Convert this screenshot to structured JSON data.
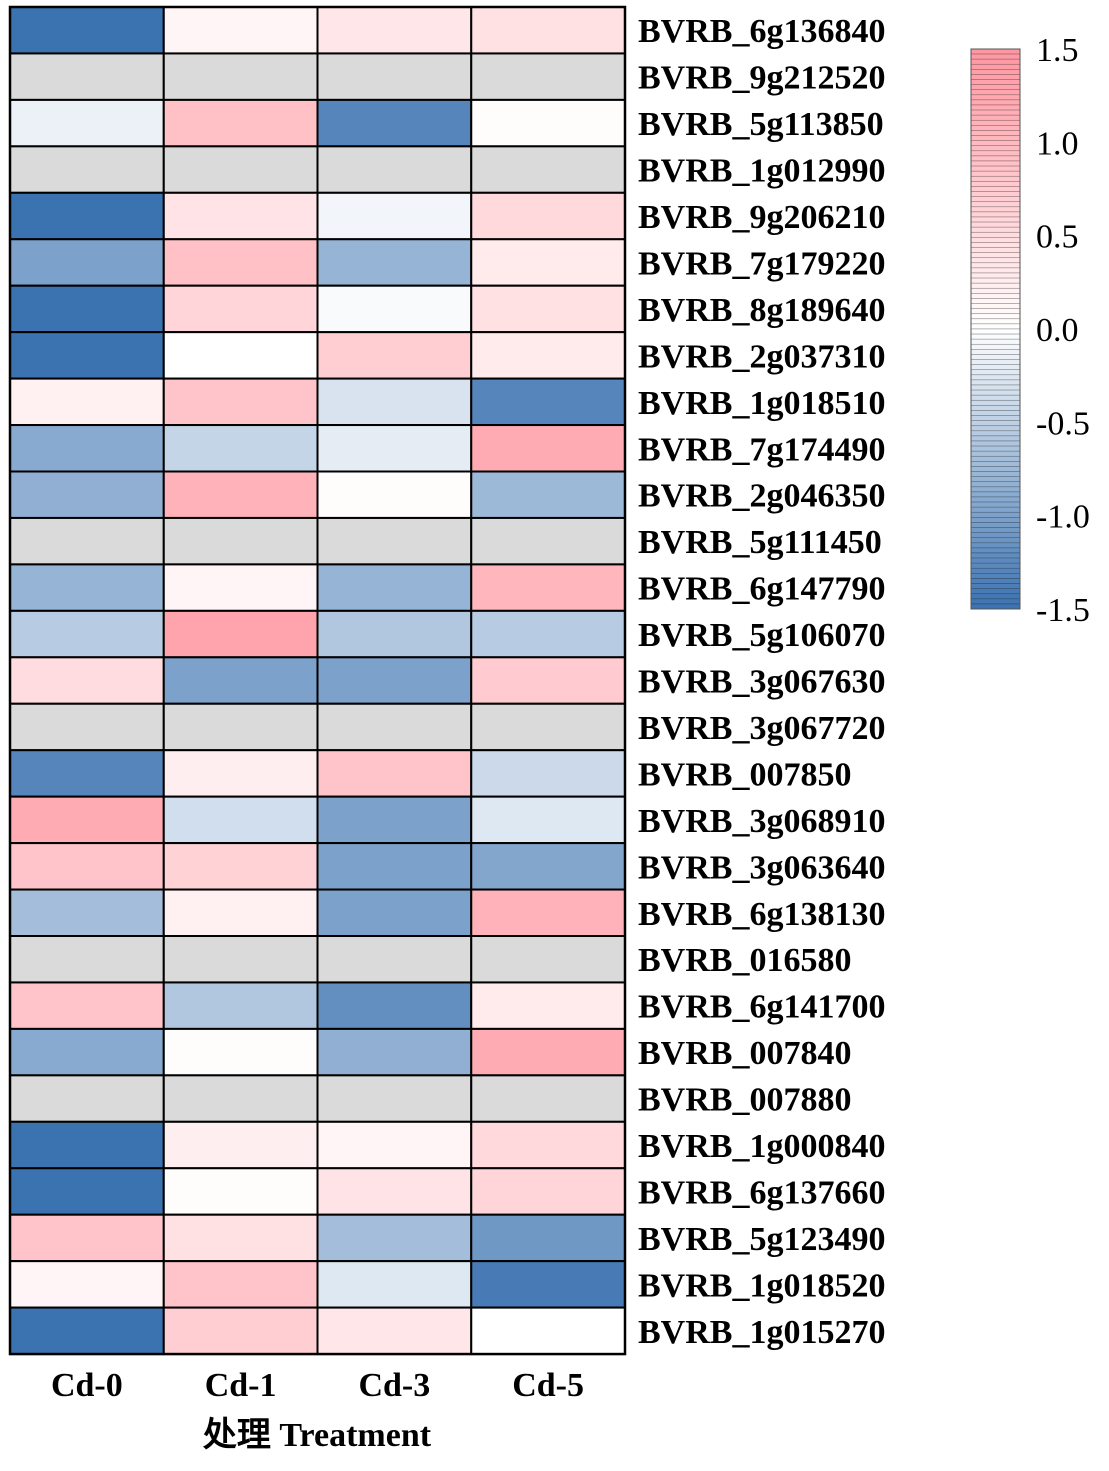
{
  "chart_data": {
    "type": "heatmap",
    "x_axis": {
      "categories": [
        "Cd-0",
        "Cd-1",
        "Cd-3",
        "Cd-5"
      ],
      "label": "处理 Treatment"
    },
    "rows": [
      {
        "gene": "BVRB_6g136840",
        "values": [
          -1.5,
          0.15,
          0.35,
          0.45
        ]
      },
      {
        "gene": "BVRB_9g212520",
        "values": [
          null,
          null,
          null,
          null
        ]
      },
      {
        "gene": "BVRB_5g113850",
        "values": [
          -0.15,
          0.9,
          -1.3,
          0.05
        ]
      },
      {
        "gene": "BVRB_1g012990",
        "values": [
          null,
          null,
          null,
          null
        ]
      },
      {
        "gene": "BVRB_9g206210",
        "values": [
          -1.5,
          0.4,
          -0.1,
          0.55
        ]
      },
      {
        "gene": "BVRB_7g179220",
        "values": [
          -1.0,
          0.9,
          -0.8,
          0.3
        ]
      },
      {
        "gene": "BVRB_8g189640",
        "values": [
          -1.5,
          0.6,
          -0.05,
          0.45
        ]
      },
      {
        "gene": "BVRB_2g037310",
        "values": [
          -1.5,
          0.0,
          0.7,
          0.3
        ]
      },
      {
        "gene": "BVRB_1g018510",
        "values": [
          0.2,
          0.85,
          -0.3,
          -1.3
        ]
      },
      {
        "gene": "BVRB_7g174490",
        "values": [
          -0.9,
          -0.45,
          -0.2,
          1.2
        ]
      },
      {
        "gene": "BVRB_2g046350",
        "values": [
          -0.85,
          1.1,
          0.05,
          -0.75
        ]
      },
      {
        "gene": "BVRB_5g111450",
        "values": [
          null,
          null,
          null,
          null
        ]
      },
      {
        "gene": "BVRB_6g147790",
        "values": [
          -0.8,
          0.15,
          -0.8,
          1.05
        ]
      },
      {
        "gene": "BVRB_5g106070",
        "values": [
          -0.55,
          1.3,
          -0.6,
          -0.55
        ]
      },
      {
        "gene": "BVRB_3g067630",
        "values": [
          0.5,
          -1.0,
          -1.0,
          0.75
        ]
      },
      {
        "gene": "BVRB_3g067720",
        "values": [
          null,
          null,
          null,
          null
        ]
      },
      {
        "gene": "BVRB_007850",
        "values": [
          -1.3,
          0.25,
          0.85,
          -0.4
        ]
      },
      {
        "gene": "BVRB_3g068910",
        "values": [
          1.2,
          -0.35,
          -1.0,
          -0.25
        ]
      },
      {
        "gene": "BVRB_3g063640",
        "values": [
          0.85,
          0.65,
          -1.0,
          -0.95
        ]
      },
      {
        "gene": "BVRB_6g138130",
        "values": [
          -0.7,
          0.2,
          -1.0,
          1.1
        ]
      },
      {
        "gene": "BVRB_016580",
        "values": [
          null,
          null,
          null,
          null
        ]
      },
      {
        "gene": "BVRB_6g141700",
        "values": [
          0.85,
          -0.6,
          -1.2,
          0.3
        ]
      },
      {
        "gene": "BVRB_007840",
        "values": [
          -0.9,
          0.05,
          -0.85,
          1.2
        ]
      },
      {
        "gene": "BVRB_007880",
        "values": [
          null,
          null,
          null,
          null
        ]
      },
      {
        "gene": "BVRB_1g000840",
        "values": [
          -1.5,
          0.25,
          0.15,
          0.55
        ]
      },
      {
        "gene": "BVRB_6g137660",
        "values": [
          -1.5,
          0.05,
          0.4,
          0.6
        ]
      },
      {
        "gene": "BVRB_5g123490",
        "values": [
          0.85,
          0.45,
          -0.7,
          -1.1
        ]
      },
      {
        "gene": "BVRB_1g018520",
        "values": [
          0.15,
          0.85,
          -0.25,
          -1.4
        ]
      },
      {
        "gene": "BVRB_1g015270",
        "values": [
          -1.5,
          0.7,
          0.35,
          0.0
        ]
      }
    ],
    "color_scale": {
      "min": -1.5,
      "max": 1.5,
      "low_color": "#3b72b0",
      "mid_color": "#ffffff",
      "high_color": "#ff96a0",
      "missing_color": "#dadada",
      "ticks": [
        "1.5",
        "1.0",
        "0.5",
        "0.0",
        "-0.5",
        "-1.0",
        "-1.5"
      ],
      "tick_values": [
        1.5,
        1.0,
        0.5,
        0.0,
        -0.5,
        -1.0,
        -1.5
      ]
    },
    "grid": false,
    "legend_placement": "top-right"
  }
}
